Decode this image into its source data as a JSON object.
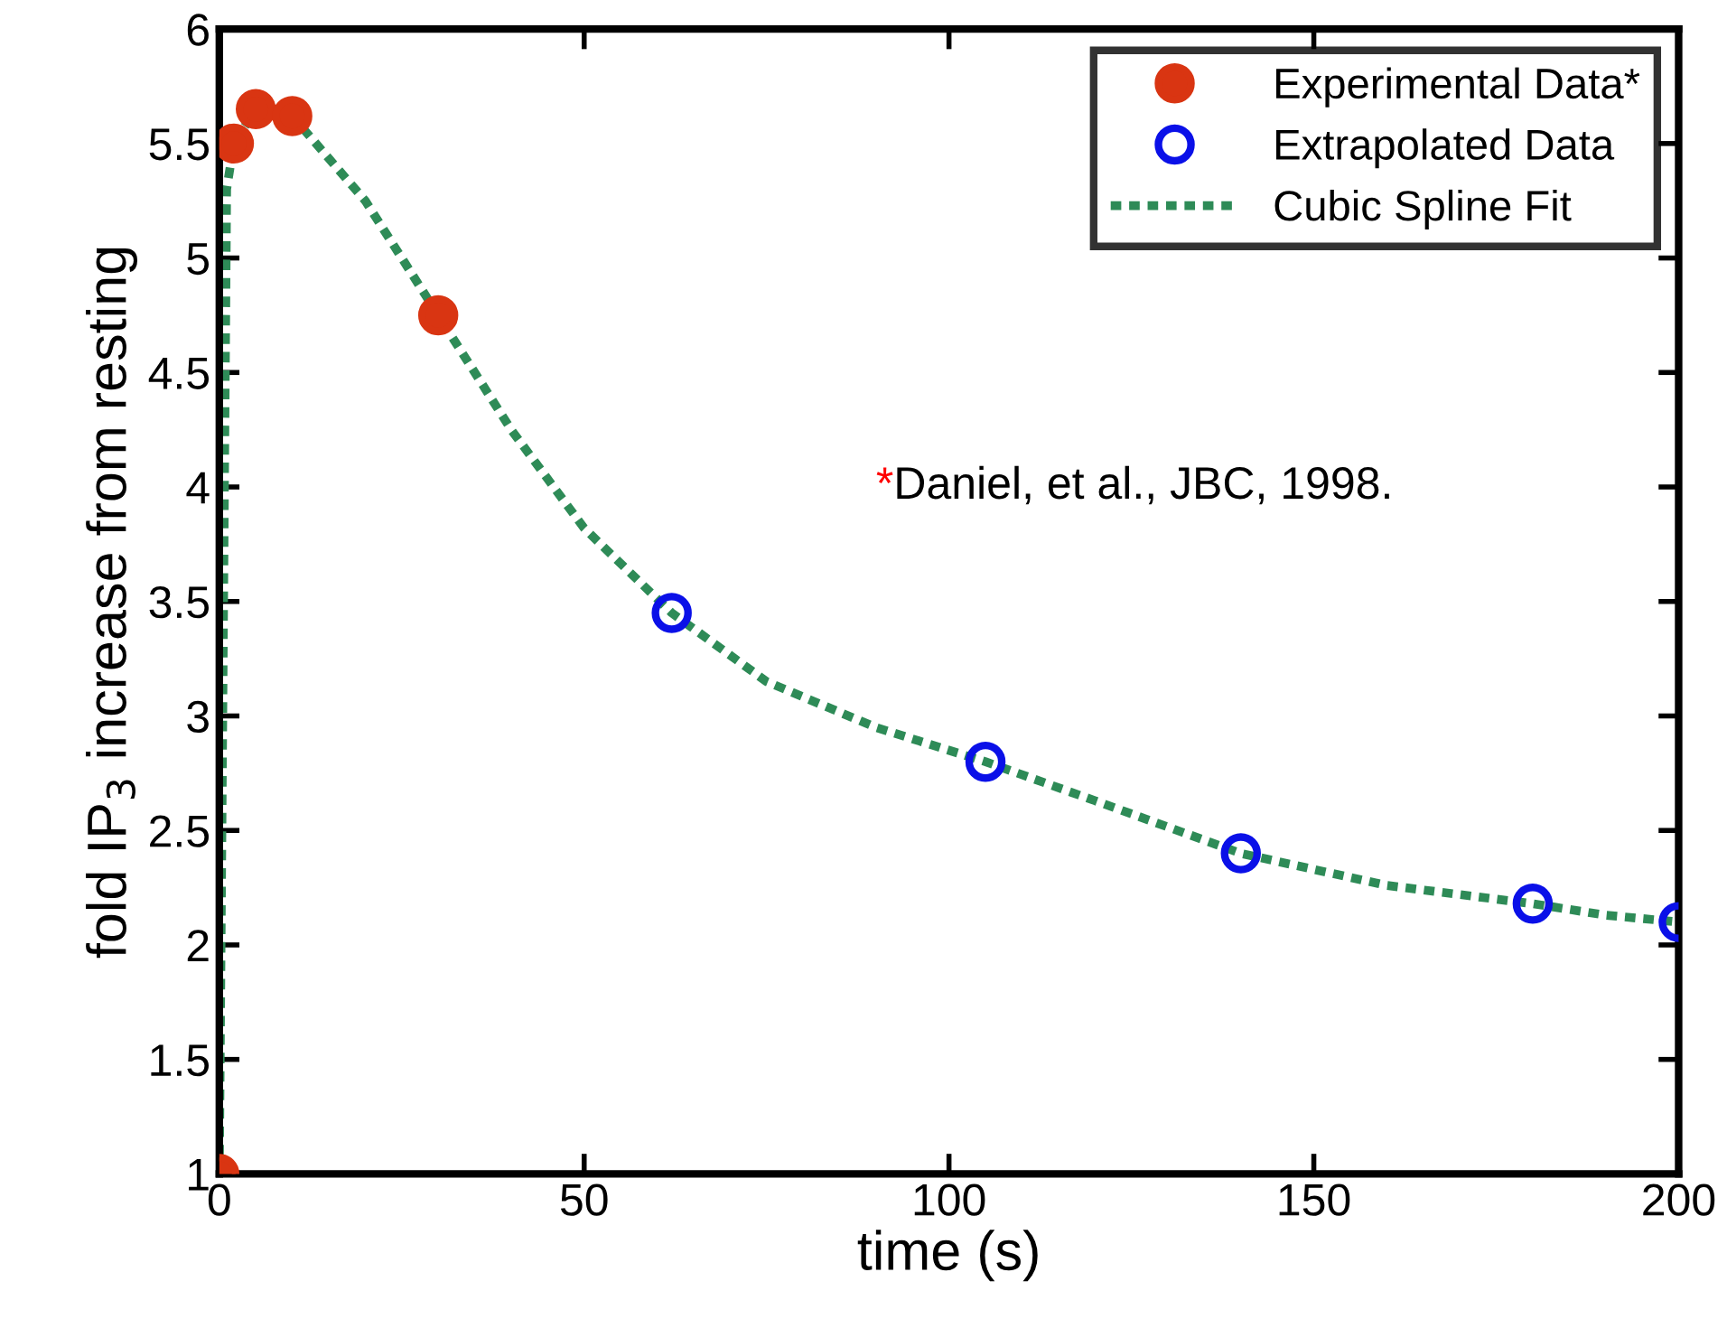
{
  "chart_data": {
    "type": "scatter",
    "xlabel": "time (s)",
    "ylabel": "fold IP$_{3}$ increase from resting",
    "xlim": [
      0,
      200
    ],
    "ylim": [
      1,
      6
    ],
    "xticks": [
      0,
      50,
      100,
      150,
      200
    ],
    "yticks": [
      1,
      1.5,
      2,
      2.5,
      3,
      3.5,
      4,
      4.5,
      5,
      5.5,
      6
    ],
    "grid": false,
    "legend": "top right",
    "annotations": [
      "*Daniel, et al., JBC, 1998."
    ],
    "series": [
      {
        "name": "Experimental Data*",
        "marker": "circle",
        "color": "#d93512",
        "x": [
          0,
          2,
          5,
          10,
          30
        ],
        "values": [
          1,
          5.5,
          5.65,
          5.62,
          4.75
        ]
      },
      {
        "name": "Extrapolated Data",
        "marker": "circle",
        "color": "#0a10e8",
        "x": [
          62,
          105,
          140,
          180,
          200
        ],
        "values": [
          3.45,
          2.8,
          2.4,
          2.18,
          2.1
        ]
      },
      {
        "name": "Cubic Spline Fit",
        "type": "line",
        "line_style": "dotted",
        "color": "#2e8b57",
        "x": [
          0,
          1,
          2,
          5,
          10,
          20,
          30,
          40,
          50,
          62,
          75,
          90,
          105,
          120,
          140,
          160,
          180,
          190,
          200
        ],
        "values": [
          1,
          5.3,
          5.5,
          5.65,
          5.62,
          5.25,
          4.75,
          4.25,
          3.82,
          3.45,
          3.15,
          2.95,
          2.8,
          2.63,
          2.4,
          2.26,
          2.18,
          2.13,
          2.1
        ]
      }
    ]
  }
}
